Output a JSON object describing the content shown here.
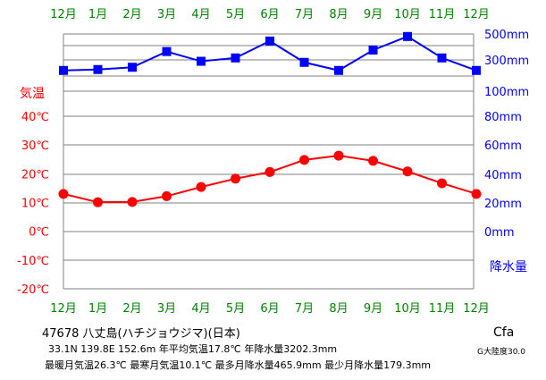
{
  "chart_data": {
    "type": "line+line",
    "months": [
      "12月",
      "1月",
      "2月",
      "3月",
      "4月",
      "5月",
      "6月",
      "7月",
      "8月",
      "9月",
      "10月",
      "11月",
      "12月"
    ],
    "temperature": {
      "name": "気温",
      "unit": "℃",
      "values": [
        13.0,
        10.1,
        10.2,
        12.2,
        15.4,
        18.3,
        20.6,
        24.8,
        26.3,
        24.5,
        20.8,
        16.7,
        13.0
      ],
      "ticks": [
        "40℃",
        "30℃",
        "20℃",
        "10℃",
        "0℃",
        "-10℃",
        "-20℃"
      ],
      "ylim": [
        -20,
        40
      ],
      "color": "#ff0000"
    },
    "precipitation": {
      "name": "降水量",
      "values": [
        179.3,
        184,
        196,
        305,
        232,
        255,
        410,
        225,
        179.3,
        318,
        466,
        255,
        179.3
      ],
      "ticks_log": [
        "500mm",
        "300mm",
        "100mm"
      ],
      "ticks_linear": [
        "80mm",
        "60mm",
        "40mm",
        "20mm",
        "0mm"
      ],
      "color": "#0000ff"
    },
    "axis_color": "#008000",
    "grid_color": "#808080"
  },
  "footer": {
    "station": "47678  八丈島(ハチジョウジマ)(日本)",
    "stats1": "33.1N  139.8E  152.6m  年平均気温17.8℃  年降水量3202.3mm",
    "stats2": "最暖月気温26.3℃  最寒月気温10.1℃  最多月降水量465.9mm  最少月降水量179.3mm",
    "koppen": "Cfa",
    "continentality": "G大陸度30.0"
  }
}
